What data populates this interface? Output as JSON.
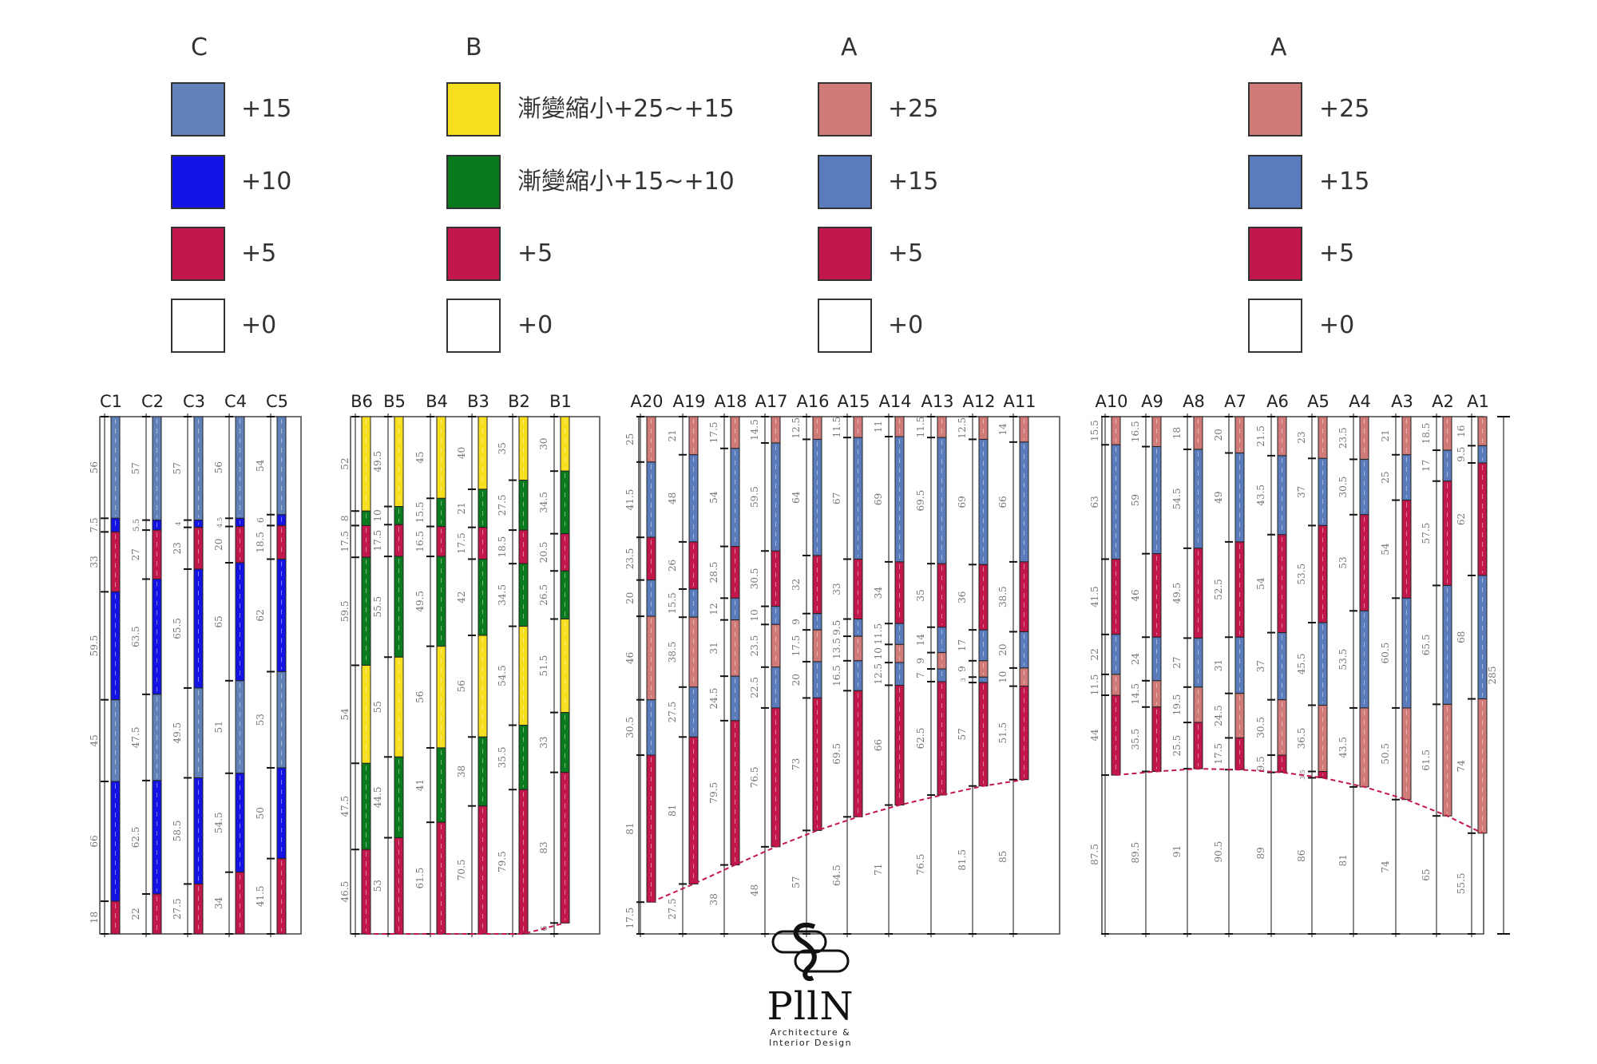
{
  "colors": {
    "L": "#D17B79",
    "M": "#5B7CBC",
    "R": "#C2174B",
    "W": "#FFFFFF",
    "Y": "#F7DF1E",
    "G": "#0A7A1E",
    "B": "#1313E6",
    "S": "#6182B8"
  },
  "legend": [
    {
      "heading": "C",
      "items": [
        {
          "color": "S",
          "label": "+15"
        },
        {
          "color": "B",
          "label": "+10"
        },
        {
          "color": "R",
          "label": "+5"
        },
        {
          "color": "W",
          "label": "+0"
        }
      ]
    },
    {
      "heading": "B",
      "items": [
        {
          "color": "Y",
          "label": "漸變縮小+25~+15"
        },
        {
          "color": "G",
          "label": "漸變縮小+15~+10"
        },
        {
          "color": "R",
          "label": "+5"
        },
        {
          "color": "W",
          "label": "+0"
        }
      ]
    },
    {
      "heading": "A",
      "items": [
        {
          "color": "L",
          "label": "+25"
        },
        {
          "color": "M",
          "label": "+15"
        },
        {
          "color": "R",
          "label": "+5"
        },
        {
          "color": "W",
          "label": "+0"
        }
      ]
    },
    {
      "heading": "A",
      "items": [
        {
          "color": "L",
          "label": "+25"
        },
        {
          "color": "M",
          "label": "+15"
        },
        {
          "color": "R",
          "label": "+5"
        },
        {
          "color": "W",
          "label": "+0"
        }
      ]
    }
  ],
  "total_height": 285,
  "total_label": "285",
  "sections": [
    {
      "name": "C",
      "columns": [
        {
          "label": "C1",
          "segments": [
            [
              56,
              "S"
            ],
            [
              7.5,
              "B"
            ],
            [
              33,
              "R"
            ],
            [
              59.5,
              "B"
            ],
            [
              45,
              "S"
            ],
            [
              66,
              "B"
            ],
            [
              18,
              "R"
            ]
          ]
        },
        {
          "label": "C2",
          "segments": [
            [
              57,
              "S"
            ],
            [
              5.5,
              "B"
            ],
            [
              27,
              "R"
            ],
            [
              63.5,
              "B"
            ],
            [
              47.5,
              "S"
            ],
            [
              62.5,
              "B"
            ],
            [
              22,
              "R"
            ]
          ]
        },
        {
          "label": "C3",
          "segments": [
            [
              57,
              "S"
            ],
            [
              4,
              "B"
            ],
            [
              23,
              "R"
            ],
            [
              65.5,
              "B"
            ],
            [
              49.5,
              "S"
            ],
            [
              58.5,
              "B"
            ],
            [
              27.5,
              "R"
            ]
          ]
        },
        {
          "label": "C4",
          "segments": [
            [
              56,
              "S"
            ],
            [
              4.5,
              "B"
            ],
            [
              20,
              "R"
            ],
            [
              65,
              "B"
            ],
            [
              51,
              "S"
            ],
            [
              54.5,
              "B"
            ],
            [
              34,
              "R"
            ]
          ]
        },
        {
          "label": "C5",
          "segments": [
            [
              54,
              "S"
            ],
            [
              6,
              "B"
            ],
            [
              18.5,
              "R"
            ],
            [
              62,
              "B"
            ],
            [
              53,
              "S"
            ],
            [
              50,
              "B"
            ],
            [
              41.5,
              "R"
            ]
          ]
        }
      ]
    },
    {
      "name": "B",
      "columns": [
        {
          "label": "B6",
          "segments": [
            [
              52,
              "Y"
            ],
            [
              8,
              "G"
            ],
            [
              17.5,
              "R"
            ],
            [
              59.5,
              "G"
            ],
            [
              54,
              "Y"
            ],
            [
              47.5,
              "G"
            ],
            [
              46.5,
              "R"
            ]
          ]
        },
        {
          "label": "B5",
          "segments": [
            [
              49.5,
              "Y"
            ],
            [
              10,
              "G"
            ],
            [
              17.5,
              "R"
            ],
            [
              55.5,
              "G"
            ],
            [
              55,
              "Y"
            ],
            [
              44.5,
              "G"
            ],
            [
              53,
              "R"
            ]
          ]
        },
        {
          "label": "B4",
          "segments": [
            [
              45,
              "Y"
            ],
            [
              15.5,
              "G"
            ],
            [
              16.5,
              "R"
            ],
            [
              49.5,
              "G"
            ],
            [
              56,
              "Y"
            ],
            [
              41,
              "G"
            ],
            [
              61.5,
              "R"
            ]
          ]
        },
        {
          "label": "B3",
          "segments": [
            [
              40,
              "Y"
            ],
            [
              21,
              "G"
            ],
            [
              17.5,
              "R"
            ],
            [
              42,
              "G"
            ],
            [
              56,
              "Y"
            ],
            [
              38,
              "G"
            ],
            [
              70.5,
              "R"
            ]
          ]
        },
        {
          "label": "B2",
          "segments": [
            [
              35,
              "Y"
            ],
            [
              27.5,
              "G"
            ],
            [
              18.5,
              "R"
            ],
            [
              34.5,
              "G"
            ],
            [
              54.5,
              "Y"
            ],
            [
              35.5,
              "G"
            ],
            [
              79.5,
              "R"
            ]
          ]
        },
        {
          "label": "B1",
          "segments": [
            [
              30,
              "Y"
            ],
            [
              34.5,
              "G"
            ],
            [
              20.5,
              "R"
            ],
            [
              26.5,
              "G"
            ],
            [
              51.5,
              "Y"
            ],
            [
              33,
              "G"
            ],
            [
              83,
              "R"
            ],
            [
              6,
              "W"
            ]
          ]
        }
      ]
    },
    {
      "name": "A-left",
      "columns": [
        {
          "label": "A20",
          "segments": [
            [
              25,
              "L"
            ],
            [
              41.5,
              "M"
            ],
            [
              23.5,
              "R"
            ],
            [
              20,
              "M"
            ],
            [
              46,
              "L"
            ],
            [
              30.5,
              "M"
            ],
            [
              81,
              "R"
            ],
            [
              17.5,
              "W"
            ]
          ]
        },
        {
          "label": "A19",
          "segments": [
            [
              21,
              "L"
            ],
            [
              48,
              "M"
            ],
            [
              26,
              "R"
            ],
            [
              15.5,
              "M"
            ],
            [
              38.5,
              "L"
            ],
            [
              27.5,
              "M"
            ],
            [
              81,
              "R"
            ],
            [
              27.5,
              "W"
            ]
          ]
        },
        {
          "label": "A18",
          "segments": [
            [
              17.5,
              "L"
            ],
            [
              54,
              "M"
            ],
            [
              28.5,
              "R"
            ],
            [
              12,
              "M"
            ],
            [
              31,
              "L"
            ],
            [
              24.5,
              "M"
            ],
            [
              79.5,
              "R"
            ],
            [
              38,
              "W"
            ]
          ]
        },
        {
          "label": "A17",
          "segments": [
            [
              14.5,
              "L"
            ],
            [
              59.5,
              "M"
            ],
            [
              30.5,
              "R"
            ],
            [
              10,
              "M"
            ],
            [
              23.5,
              "L"
            ],
            [
              22.5,
              "M"
            ],
            [
              76.5,
              "R"
            ],
            [
              48,
              "W"
            ]
          ]
        },
        {
          "label": "A16",
          "segments": [
            [
              12.5,
              "L"
            ],
            [
              64,
              "M"
            ],
            [
              32,
              "R"
            ],
            [
              9,
              "M"
            ],
            [
              17.5,
              "L"
            ],
            [
              20,
              "M"
            ],
            [
              73,
              "R"
            ],
            [
              57,
              "W"
            ]
          ]
        },
        {
          "label": "A15",
          "segments": [
            [
              11.5,
              "L"
            ],
            [
              67,
              "M"
            ],
            [
              33,
              "R"
            ],
            [
              9.5,
              "M"
            ],
            [
              13.5,
              "L"
            ],
            [
              16.5,
              "M"
            ],
            [
              69.5,
              "R"
            ],
            [
              64.5,
              "W"
            ]
          ]
        },
        {
          "label": "A14",
          "segments": [
            [
              11,
              "L"
            ],
            [
              69,
              "M"
            ],
            [
              34,
              "R"
            ],
            [
              11.5,
              "M"
            ],
            [
              10,
              "L"
            ],
            [
              12.5,
              "M"
            ],
            [
              66,
              "R"
            ],
            [
              71,
              "W"
            ]
          ]
        },
        {
          "label": "A13",
          "segments": [
            [
              11.5,
              "L"
            ],
            [
              69.5,
              "M"
            ],
            [
              35,
              "R"
            ],
            [
              14,
              "M"
            ],
            [
              9,
              "L"
            ],
            [
              7,
              "M"
            ],
            [
              62.5,
              "R"
            ],
            [
              76.5,
              "W"
            ]
          ]
        },
        {
          "label": "A12",
          "segments": [
            [
              12.5,
              "L"
            ],
            [
              69,
              "M"
            ],
            [
              36,
              "R"
            ],
            [
              17,
              "M"
            ],
            [
              9,
              "L"
            ],
            [
              3,
              "M"
            ],
            [
              57,
              "R"
            ],
            [
              81.5,
              "W"
            ]
          ]
        },
        {
          "label": "A11",
          "segments": [
            [
              14,
              "L"
            ],
            [
              66,
              "M"
            ],
            [
              38.5,
              "R"
            ],
            [
              20,
              "M"
            ],
            [
              10,
              "L"
            ],
            [
              51.5,
              "R"
            ],
            [
              85,
              "W"
            ]
          ]
        }
      ]
    },
    {
      "name": "A-right",
      "columns": [
        {
          "label": "A10",
          "segments": [
            [
              15.5,
              "L"
            ],
            [
              63,
              "M"
            ],
            [
              41.5,
              "R"
            ],
            [
              22,
              "M"
            ],
            [
              11.5,
              "L"
            ],
            [
              44,
              "R"
            ],
            [
              87.5,
              "W"
            ]
          ]
        },
        {
          "label": "A9",
          "segments": [
            [
              16.5,
              "L"
            ],
            [
              59,
              "M"
            ],
            [
              46,
              "R"
            ],
            [
              24,
              "M"
            ],
            [
              14.5,
              "L"
            ],
            [
              35.5,
              "R"
            ],
            [
              89.5,
              "W"
            ]
          ]
        },
        {
          "label": "A8",
          "segments": [
            [
              18,
              "L"
            ],
            [
              54.5,
              "M"
            ],
            [
              49.5,
              "R"
            ],
            [
              27,
              "M"
            ],
            [
              19.5,
              "L"
            ],
            [
              25.5,
              "R"
            ],
            [
              91,
              "W"
            ]
          ]
        },
        {
          "label": "A7",
          "segments": [
            [
              20,
              "L"
            ],
            [
              49,
              "M"
            ],
            [
              52.5,
              "R"
            ],
            [
              31,
              "M"
            ],
            [
              24.5,
              "L"
            ],
            [
              17.5,
              "R"
            ],
            [
              90.5,
              "W"
            ]
          ]
        },
        {
          "label": "A6",
          "segments": [
            [
              21.5,
              "L"
            ],
            [
              43.5,
              "M"
            ],
            [
              54,
              "R"
            ],
            [
              37,
              "M"
            ],
            [
              30.5,
              "L"
            ],
            [
              9.5,
              "R"
            ],
            [
              89,
              "W"
            ]
          ]
        },
        {
          "label": "A5",
          "segments": [
            [
              23,
              "L"
            ],
            [
              37,
              "M"
            ],
            [
              53.5,
              "R"
            ],
            [
              45.5,
              "M"
            ],
            [
              36.5,
              "L"
            ],
            [
              3.5,
              "R"
            ],
            [
              86,
              "W"
            ]
          ]
        },
        {
          "label": "A4",
          "segments": [
            [
              23.5,
              "L"
            ],
            [
              30.5,
              "M"
            ],
            [
              53,
              "R"
            ],
            [
              53.5,
              "M"
            ],
            [
              43.5,
              "L"
            ],
            [
              81,
              "W"
            ]
          ]
        },
        {
          "label": "A3",
          "segments": [
            [
              21,
              "L"
            ],
            [
              25,
              "M"
            ],
            [
              54,
              "R"
            ],
            [
              60.5,
              "M"
            ],
            [
              50.5,
              "L"
            ],
            [
              74,
              "W"
            ]
          ]
        },
        {
          "label": "A2",
          "segments": [
            [
              18.5,
              "L"
            ],
            [
              17,
              "M"
            ],
            [
              57.5,
              "R"
            ],
            [
              65.5,
              "M"
            ],
            [
              61.5,
              "L"
            ],
            [
              65,
              "W"
            ]
          ]
        },
        {
          "label": "A1",
          "segments": [
            [
              16,
              "L"
            ],
            [
              9.5,
              "M"
            ],
            [
              62,
              "R"
            ],
            [
              68,
              "M"
            ],
            [
              74,
              "L"
            ],
            [
              55.5,
              "W"
            ]
          ]
        }
      ]
    }
  ],
  "logo": {
    "word": "PllN",
    "line1": "Architecture &",
    "line2": "Interior Design"
  }
}
